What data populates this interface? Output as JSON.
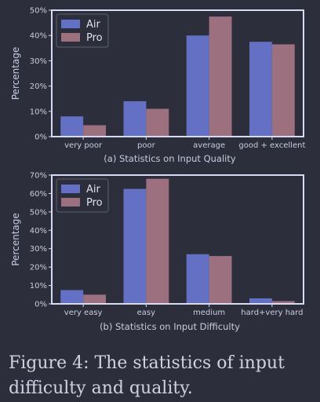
{
  "colors": {
    "air": "#6470c4",
    "pro": "#9c707e",
    "frame": "#d6daf2",
    "text": "#c9cbe0"
  },
  "chart_data": [
    {
      "type": "bar",
      "ylabel": "Percentage",
      "caption": "(a) Statistics on Input Quality",
      "categories": [
        "very poor",
        "poor",
        "average",
        "good + excellent"
      ],
      "series": [
        {
          "name": "Air",
          "values": [
            8,
            14,
            40,
            37.5
          ]
        },
        {
          "name": "Pro",
          "values": [
            4.5,
            11,
            47.5,
            36.5
          ]
        }
      ],
      "ylim": [
        0,
        50
      ],
      "yticks": [
        0,
        10,
        20,
        30,
        40,
        50
      ],
      "ytick_labels": [
        "0%",
        "10%",
        "20%",
        "30%",
        "40%",
        "50%"
      ],
      "legend": "top-left",
      "grid": false
    },
    {
      "type": "bar",
      "ylabel": "Percentage",
      "caption": "(b) Statistics on Input Difficulty",
      "categories": [
        "very easy",
        "easy",
        "medium",
        "hard+very hard"
      ],
      "series": [
        {
          "name": "Air",
          "values": [
            7.5,
            62.5,
            27,
            3
          ]
        },
        {
          "name": "Pro",
          "values": [
            5,
            68,
            26,
            1.5
          ]
        }
      ],
      "ylim": [
        0,
        70
      ],
      "yticks": [
        0,
        10,
        20,
        30,
        40,
        50,
        60,
        70
      ],
      "ytick_labels": [
        "0%",
        "10%",
        "20%",
        "30%",
        "40%",
        "50%",
        "60%",
        "70%"
      ],
      "legend": "top-left",
      "grid": false
    }
  ],
  "figure_caption": "Figure 4: The statistics of input difficulty and quality."
}
